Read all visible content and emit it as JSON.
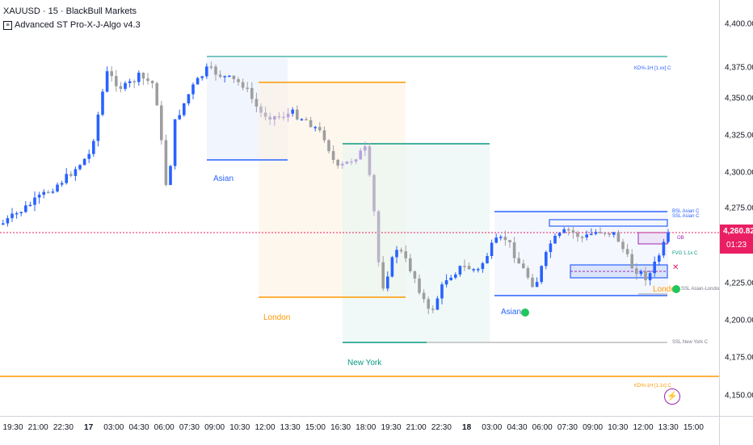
{
  "legend": {
    "symbol_line": "XAUUSD · 15 · BlackBull Markets",
    "indicator_line": "Advanced ST Pro-X-J-Algo v4.3",
    "indicator_icon": "indicator-icon"
  },
  "current_price": {
    "value": "4,260.82",
    "countdown": "01:23",
    "color": "#e91e63"
  },
  "price_axis": [
    "4,400.00",
    "4,375.00",
    "4,350.00",
    "4,325.00",
    "4,300.00",
    "4,275.00",
    "4,225.00",
    "4,200.00",
    "4,175.00",
    "4,150.00"
  ],
  "time_axis": [
    "19:30",
    "21:00",
    "22:30",
    "17",
    "03:00",
    "04:30",
    "06:00",
    "07:30",
    "09:00",
    "10:30",
    "12:00",
    "13:30",
    "15:00",
    "16:30",
    "18:00",
    "19:30",
    "21:00",
    "22:30",
    "18",
    "03:00",
    "04:30",
    "06:00",
    "07:30",
    "09:00",
    "10:30",
    "12:00",
    "13:30",
    "15:00"
  ],
  "sessions": {
    "asian_1": "Asian",
    "london": "London",
    "new_york": "New York",
    "asian_2": "Asian",
    "london_2": "London"
  },
  "annotations": {
    "kd_top": "KD%-1H [1.xx] C",
    "bsl_asian": "BSL Asian C",
    "ssl_asian": "SSL Asian C",
    "ob_label": "OB",
    "fvg": "FVG 1.1x C",
    "ssl_london": "SSL Asian-London C",
    "ssl_ny": "SSL New York C",
    "kd_bottom": "KD%-1H [1.1x] C"
  },
  "colors": {
    "bull": "#2962ff",
    "bear": "#9e9e9e",
    "asian": "#2962ff",
    "london": "#ff9800",
    "new_york": "#089981",
    "bar_ghost": "#c7a6e8",
    "accent": "#9c27b0"
  }
}
